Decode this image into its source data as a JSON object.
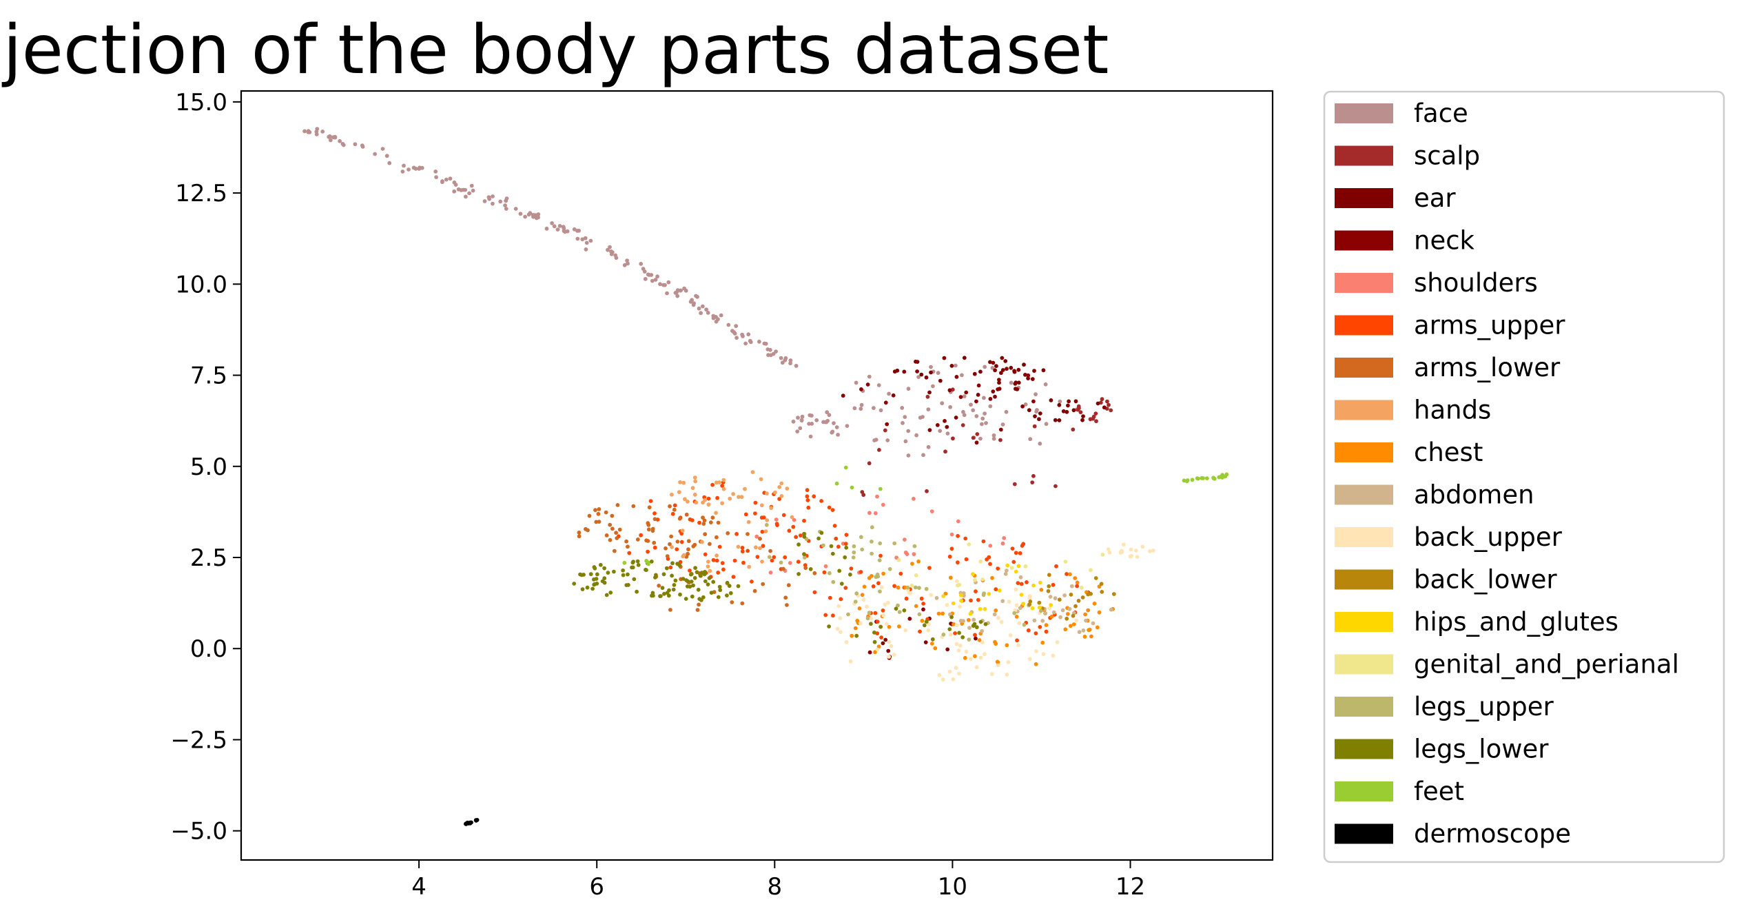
{
  "chart_data": {
    "type": "scatter",
    "title": "UMAP projection of the body parts dataset",
    "xlabel": "",
    "ylabel": "",
    "xlim": [
      2.0,
      13.6
    ],
    "ylim": [
      -5.8,
      15.3
    ],
    "x_ticks": [
      4,
      6,
      8,
      10,
      12
    ],
    "x_tick_labels": [
      "4",
      "6",
      "8",
      "10",
      "12"
    ],
    "y_ticks": [
      -5.0,
      -2.5,
      0.0,
      2.5,
      5.0,
      7.5,
      10.0,
      12.5,
      15.0
    ],
    "y_tick_labels": [
      "−5.0",
      "−2.5",
      "0.0",
      "2.5",
      "5.0",
      "7.5",
      "10.0",
      "12.5",
      "15.0"
    ],
    "grid": false,
    "legend_position": "outside-right",
    "series": [
      {
        "name": "face",
        "color": "#bc8f8f",
        "regions": [
          {
            "path": [
              [
                2.6,
                14.3
              ],
              [
                3.5,
                13.7
              ],
              [
                4.5,
                12.6
              ],
              [
                5.5,
                11.7
              ],
              [
                6.2,
                10.8
              ],
              [
                7.0,
                9.7
              ],
              [
                7.6,
                8.6
              ],
              [
                8.2,
                7.8
              ]
            ],
            "n": 170,
            "spread": 0.06
          },
          {
            "cx": 8.5,
            "cy": 6.1,
            "rx": 0.35,
            "ry": 0.4,
            "n": 25
          },
          {
            "cx": 10.0,
            "cy": 6.5,
            "rx": 1.4,
            "ry": 1.3,
            "n": 70
          }
        ]
      },
      {
        "name": "scalp",
        "color": "#a52a2a",
        "regions": [
          {
            "cx": 11.6,
            "cy": 6.6,
            "rx": 0.2,
            "ry": 0.4,
            "n": 15
          },
          {
            "cx": 10.0,
            "cy": 5.5,
            "rx": 1.5,
            "ry": 1.8,
            "n": 20
          }
        ]
      },
      {
        "name": "ear",
        "color": "#800000",
        "regions": [
          {
            "cx": 10.2,
            "cy": 7.5,
            "rx": 0.9,
            "ry": 0.55,
            "n": 40
          },
          {
            "cx": 11.3,
            "cy": 6.5,
            "rx": 0.45,
            "ry": 0.35,
            "n": 18
          }
        ]
      },
      {
        "name": "neck",
        "color": "#8b0000",
        "regions": [
          {
            "cx": 10.0,
            "cy": 6.8,
            "rx": 1.3,
            "ry": 1.2,
            "n": 30
          },
          {
            "cx": 9.6,
            "cy": 0.4,
            "rx": 0.9,
            "ry": 0.7,
            "n": 15
          }
        ]
      },
      {
        "name": "shoulders",
        "color": "#fa8072",
        "regions": [
          {
            "cx": 9.2,
            "cy": 2.8,
            "rx": 1.5,
            "ry": 1.5,
            "n": 25
          }
        ]
      },
      {
        "name": "arms_upper",
        "color": "#ff4500",
        "regions": [
          {
            "cx": 7.6,
            "cy": 3.2,
            "rx": 1.4,
            "ry": 1.4,
            "n": 90
          },
          {
            "cx": 10.0,
            "cy": 1.5,
            "rx": 1.6,
            "ry": 1.6,
            "n": 70
          }
        ]
      },
      {
        "name": "arms_lower",
        "color": "#d2691e",
        "regions": [
          {
            "cx": 6.6,
            "cy": 3.3,
            "rx": 0.9,
            "ry": 0.7,
            "n": 55
          },
          {
            "cx": 7.4,
            "cy": 2.0,
            "rx": 1.3,
            "ry": 1.2,
            "n": 30
          }
        ]
      },
      {
        "name": "hands",
        "color": "#f4a460",
        "regions": [
          {
            "cx": 7.5,
            "cy": 4.3,
            "rx": 0.7,
            "ry": 0.6,
            "n": 35
          },
          {
            "cx": 7.8,
            "cy": 2.7,
            "rx": 1.1,
            "ry": 1.1,
            "n": 20
          }
        ]
      },
      {
        "name": "chest",
        "color": "#ff8c00",
        "regions": [
          {
            "cx": 10.2,
            "cy": 1.0,
            "rx": 1.5,
            "ry": 1.7,
            "n": 60
          },
          {
            "cx": 11.5,
            "cy": 1.2,
            "rx": 0.5,
            "ry": 0.9,
            "n": 15
          }
        ]
      },
      {
        "name": "abdomen",
        "color": "#d2b48c",
        "regions": [
          {
            "cx": 10.8,
            "cy": 1.2,
            "rx": 1.0,
            "ry": 1.0,
            "n": 40
          }
        ]
      },
      {
        "name": "back_upper",
        "color": "#ffe4b5",
        "regions": [
          {
            "cx": 10.0,
            "cy": 0.5,
            "rx": 1.5,
            "ry": 1.4,
            "n": 75
          },
          {
            "cx": 12.0,
            "cy": 2.7,
            "rx": 0.3,
            "ry": 0.2,
            "n": 15
          }
        ]
      },
      {
        "name": "back_lower",
        "color": "#b8860b",
        "regions": [
          {
            "cx": 11.3,
            "cy": 1.4,
            "rx": 0.55,
            "ry": 0.7,
            "n": 20
          }
        ]
      },
      {
        "name": "hips_and_glutes",
        "color": "#ffd700",
        "regions": [
          {
            "cx": 10.5,
            "cy": 1.6,
            "rx": 0.8,
            "ry": 0.7,
            "n": 20
          }
        ]
      },
      {
        "name": "genital_and_perianal",
        "color": "#f0e68c",
        "regions": [
          {
            "cx": 10.5,
            "cy": 2.2,
            "rx": 1.3,
            "ry": 1.0,
            "n": 15
          }
        ]
      },
      {
        "name": "legs_upper",
        "color": "#bdb76b",
        "regions": [
          {
            "cx": 8.7,
            "cy": 2.8,
            "rx": 1.0,
            "ry": 1.0,
            "n": 25
          },
          {
            "cx": 9.8,
            "cy": 1.0,
            "rx": 1.2,
            "ry": 0.8,
            "n": 20
          }
        ]
      },
      {
        "name": "legs_lower",
        "color": "#808000",
        "regions": [
          {
            "cx": 6.5,
            "cy": 1.9,
            "rx": 0.8,
            "ry": 0.5,
            "n": 75
          },
          {
            "cx": 7.2,
            "cy": 1.7,
            "rx": 0.4,
            "ry": 0.4,
            "n": 25
          },
          {
            "cx": 8.6,
            "cy": 2.5,
            "rx": 0.4,
            "ry": 0.9,
            "n": 15
          },
          {
            "cx": 9.5,
            "cy": 0.6,
            "rx": 1.0,
            "ry": 0.5,
            "n": 20
          }
        ]
      },
      {
        "name": "feet",
        "color": "#9acd32",
        "regions": [
          {
            "path": [
              [
                12.6,
                4.6
              ],
              [
                13.1,
                4.75
              ]
            ],
            "n": 18,
            "spread": 0.02
          },
          {
            "cx": 6.5,
            "cy": 2.4,
            "rx": 0.2,
            "ry": 0.15,
            "n": 4
          },
          {
            "cx": 8.8,
            "cy": 4.6,
            "rx": 0.5,
            "ry": 0.5,
            "n": 4
          }
        ]
      },
      {
        "name": "dermoscope",
        "color": "#000000",
        "regions": [
          {
            "path": [
              [
                4.52,
                -4.82
              ],
              [
                4.66,
                -4.7
              ]
            ],
            "n": 14,
            "spread": 0.008
          }
        ]
      }
    ]
  }
}
